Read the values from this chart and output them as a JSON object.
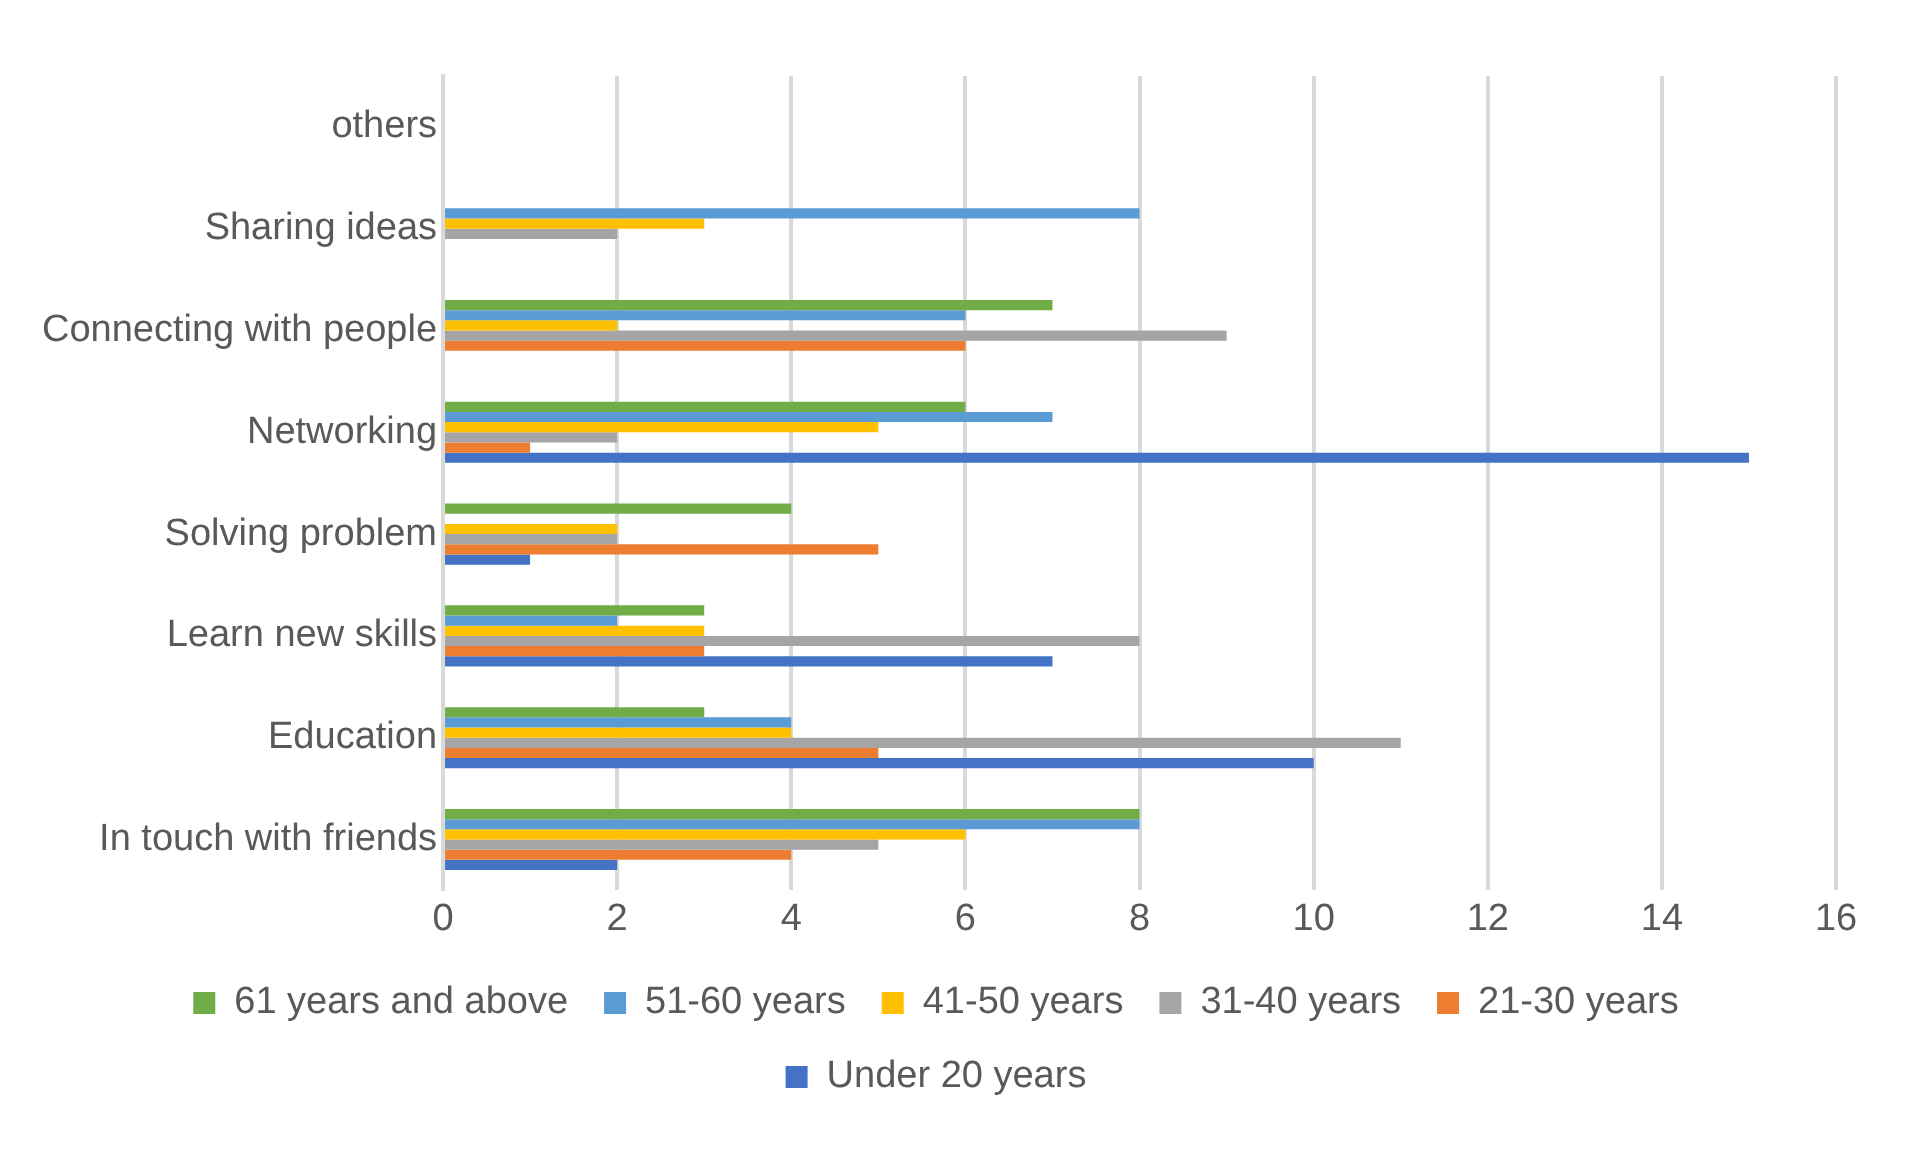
{
  "chart_data": {
    "type": "bar",
    "orientation": "horizontal",
    "categories": [
      "others",
      "Sharing ideas",
      "Connecting with people",
      "Networking",
      "Solving problem",
      "Learn new skills",
      "Education",
      "In touch with friends"
    ],
    "series": [
      {
        "name": "61 years and above",
        "color": "#70ad47",
        "values": [
          0,
          0,
          7,
          6,
          4,
          3,
          3,
          8
        ]
      },
      {
        "name": "51-60 years",
        "color": "#5b9bd5",
        "values": [
          0,
          8,
          6,
          7,
          0,
          2,
          4,
          8
        ]
      },
      {
        "name": "41-50 years",
        "color": "#ffc000",
        "values": [
          0,
          3,
          2,
          5,
          2,
          3,
          4,
          6
        ]
      },
      {
        "name": "31-40 years",
        "color": "#a5a5a5",
        "values": [
          0,
          2,
          9,
          2,
          2,
          8,
          11,
          5
        ]
      },
      {
        "name": "21-30 years",
        "color": "#ed7d31",
        "values": [
          0,
          0,
          6,
          1,
          5,
          3,
          5,
          4
        ]
      },
      {
        "name": "Under 20 years",
        "color": "#4472c4",
        "values": [
          0,
          0,
          0,
          15,
          1,
          7,
          10,
          2
        ]
      }
    ],
    "xlim": [
      0,
      16
    ],
    "xticks": [
      0,
      2,
      4,
      6,
      8,
      10,
      12,
      14,
      16
    ],
    "grid": "x",
    "legend": "bottom"
  }
}
